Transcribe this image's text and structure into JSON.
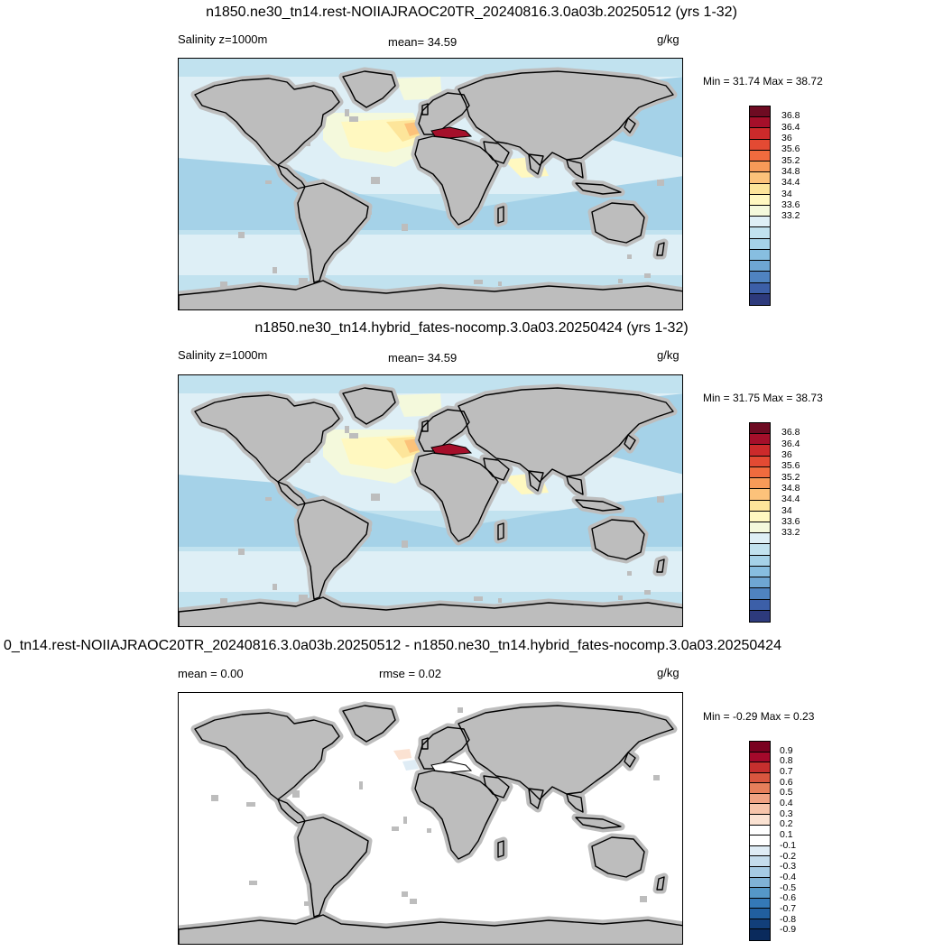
{
  "panels": [
    {
      "title": "n1850.ne30_tn14.rest-NOIIAJRAOC20TR_20240816.3.0a03b.20250512 (yrs 1-32)",
      "left_label": "Salinity z=1000m",
      "center_label": "mean=  34.59",
      "units": "g/kg",
      "minmax": "Min =  31.74 Max =  38.72",
      "colorbar_labels": [
        "36.8",
        "36.4",
        "36",
        "35.6",
        "35.2",
        "34.8",
        "34.4",
        "34",
        "33.6",
        "33.2"
      ]
    },
    {
      "title": "n1850.ne30_tn14.hybrid_fates-nocomp.3.0a03.20250424 (yrs 1-32)",
      "left_label": "Salinity z=1000m",
      "center_label": "mean=  34.59",
      "units": "g/kg",
      "minmax": "Min =  31.75 Max =  38.73",
      "colorbar_labels": [
        "36.8",
        "36.4",
        "36",
        "35.6",
        "35.2",
        "34.8",
        "34.4",
        "34",
        "33.6",
        "33.2"
      ]
    },
    {
      "title": "0_tn14.rest-NOIIAJRAOC20TR_20240816.3.0a03b.20250512 - n1850.ne30_tn14.hybrid_fates-nocomp.3.0a03.20250424",
      "left_label": "mean =   0.00",
      "center_label": "rmse =   0.02",
      "units": "g/kg",
      "minmax": "Min =  -0.29 Max =   0.23",
      "colorbar_labels": [
        "0.9",
        "0.8",
        "0.7",
        "0.6",
        "0.5",
        "0.4",
        "0.3",
        "0.2",
        "0.1",
        "-0.1",
        "-0.2",
        "-0.3",
        "-0.4",
        "-0.5",
        "-0.6",
        "-0.7",
        "-0.8",
        "-0.9"
      ]
    }
  ],
  "colors": {
    "land": "#bdbdbd",
    "coast": "#000000",
    "abs_scale": [
      "#6e0b22",
      "#a50f2a",
      "#cc2a2b",
      "#e34a33",
      "#f06b3e",
      "#f79a58",
      "#fcc27a",
      "#fde59a",
      "#fff8c0",
      "#f4f9dc",
      "#deeff6",
      "#c1e2ef",
      "#a5d2e8",
      "#87bee0",
      "#6ea6d3",
      "#4f83c0",
      "#3c5fa8",
      "#2d3a7c"
    ],
    "diff_scale": [
      "#7a0020",
      "#a4092b",
      "#c62f2e",
      "#d9563f",
      "#e67f5b",
      "#f0a283",
      "#f7c4aa",
      "#fbe2d2",
      "#ffffff",
      "#ffffff",
      "#dfecf5",
      "#c4dcec",
      "#a5cae3",
      "#7fb2d6",
      "#5598c8",
      "#3479b7",
      "#215f9f",
      "#123f7a",
      "#0a2a5c"
    ]
  }
}
